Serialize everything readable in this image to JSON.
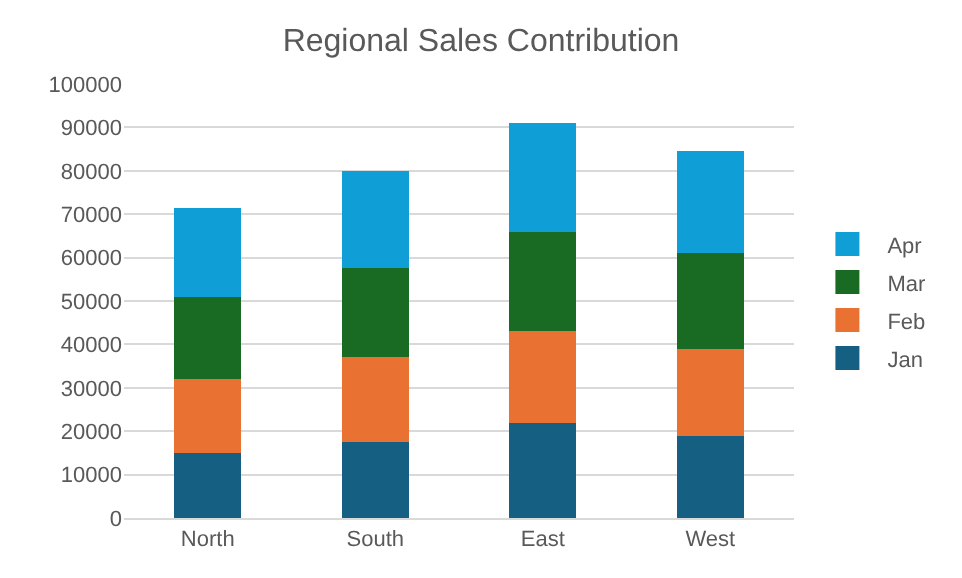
{
  "chart_data": {
    "type": "bar",
    "title": "Regional Sales Contribution",
    "categories": [
      "North",
      "South",
      "East",
      "West"
    ],
    "stacked": true,
    "series": [
      {
        "name": "Jan",
        "color": "#156082",
        "values": [
          15000,
          17500,
          22000,
          19000
        ]
      },
      {
        "name": "Feb",
        "color": "#e97132",
        "values": [
          17000,
          19500,
          21000,
          20000
        ]
      },
      {
        "name": "Mar",
        "color": "#196b24",
        "values": [
          19000,
          20500,
          23000,
          22000
        ]
      },
      {
        "name": "Apr",
        "color": "#0f9ed5",
        "values": [
          20500,
          22500,
          25000,
          23500
        ]
      }
    ],
    "ylim": [
      0,
      100000
    ],
    "yticks": [
      0,
      10000,
      20000,
      30000,
      40000,
      50000,
      60000,
      70000,
      80000,
      90000,
      100000
    ],
    "grid": "y",
    "legend": "right"
  }
}
